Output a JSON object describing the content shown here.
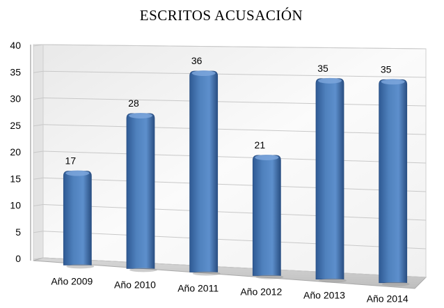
{
  "chart_data": {
    "type": "bar",
    "title": "ESCRITOS ACUSACIÓN",
    "categories": [
      "Año 2009",
      "Año 2010",
      "Año 2011",
      "Año 2012",
      "Año 2013",
      "Año 2014"
    ],
    "values": [
      17,
      28,
      36,
      21,
      35,
      35
    ],
    "data_labels": [
      "17",
      "28",
      "36",
      "21",
      "35",
      "35"
    ],
    "ylim": [
      0,
      40
    ],
    "yticks": [
      "0",
      "5",
      "10",
      "15",
      "20",
      "25",
      "30",
      "35",
      "40"
    ],
    "xlabel": "",
    "ylabel": "",
    "grid": true,
    "legend": "none",
    "style": "3d-cylinder-bars",
    "colors": {
      "bar": "#4f81bd",
      "bar_dark": "#2f5a94",
      "bar_light": "#7ea7dd",
      "wall": "#f2f2f2",
      "grid": "#c8c8c8"
    }
  }
}
